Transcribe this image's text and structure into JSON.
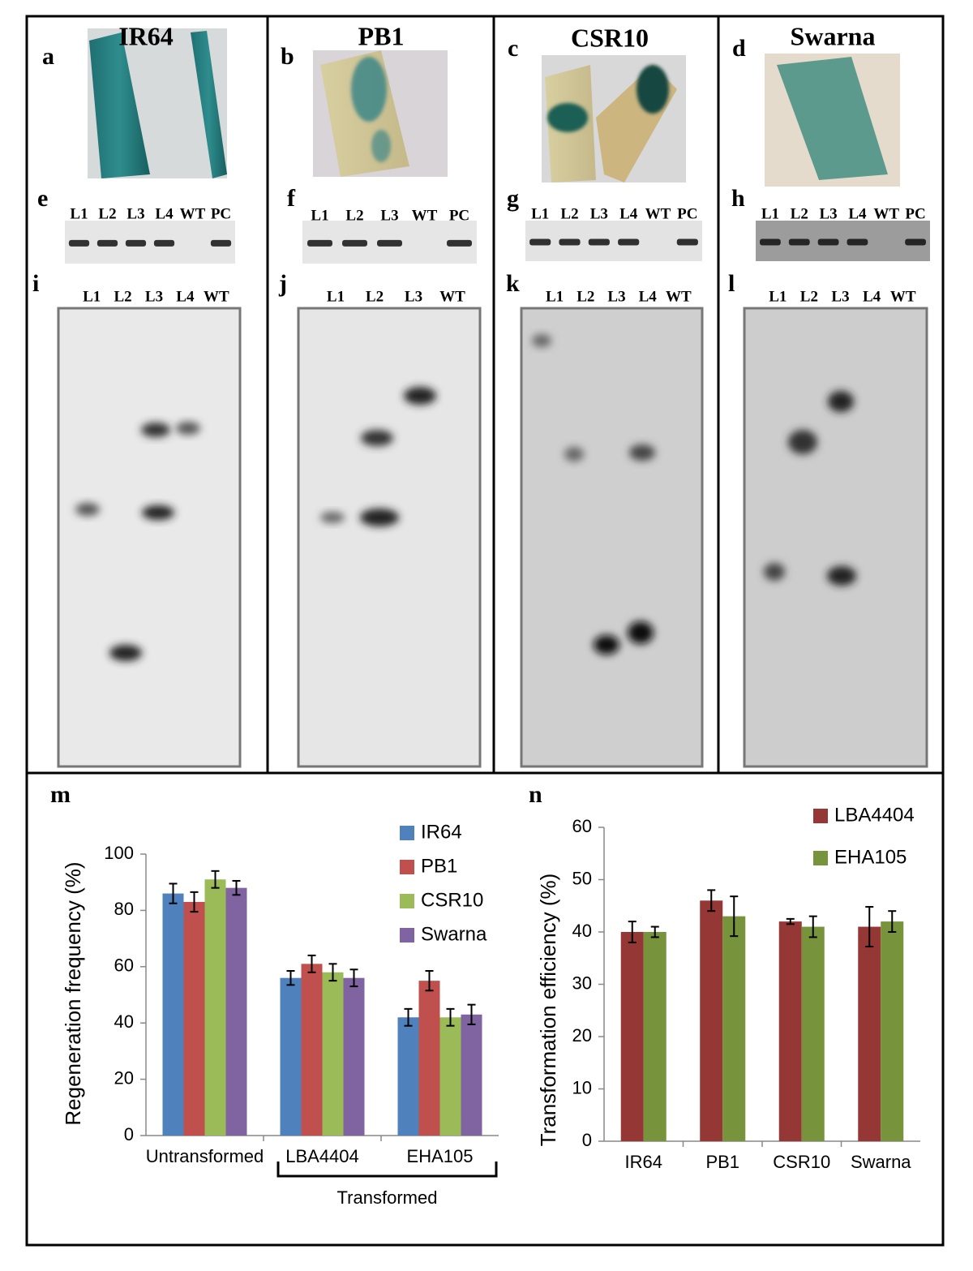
{
  "image_panels": [
    {
      "letter": "a",
      "title": "IR64"
    },
    {
      "letter": "b",
      "title": "PB1"
    },
    {
      "letter": "c",
      "title": "CSR10"
    },
    {
      "letter": "d",
      "title": "Swarna"
    }
  ],
  "pcr_panels": [
    {
      "letter": "e",
      "lanes": [
        "L1",
        "L2",
        "L3",
        "L4",
        "WT",
        "PC"
      ]
    },
    {
      "letter": "f",
      "lanes": [
        "L1",
        "L2",
        "L3",
        "WT",
        "PC"
      ]
    },
    {
      "letter": "g",
      "lanes": [
        "L1",
        "L2",
        "L3",
        "L4",
        "WT",
        "PC"
      ]
    },
    {
      "letter": "h",
      "lanes": [
        "L1",
        "L2",
        "L3",
        "L4",
        "WT",
        "PC"
      ]
    }
  ],
  "blot_panels": [
    {
      "letter": "i",
      "lanes": [
        "L1",
        "L2",
        "L3",
        "L4",
        "WT"
      ]
    },
    {
      "letter": "j",
      "lanes": [
        "L1",
        "L2",
        "L3",
        "WT"
      ]
    },
    {
      "letter": "k",
      "lanes": [
        "L1",
        "L2",
        "L3",
        "L4",
        "WT"
      ]
    },
    {
      "letter": "l",
      "lanes": [
        "L1",
        "L2",
        "L3",
        "L4",
        "WT"
      ]
    }
  ],
  "chart_data": [
    {
      "type": "bar",
      "panel_label": "m",
      "y_label": "Regeneration frequency (%)",
      "categories": [
        "Untransformed",
        "LBA4404",
        "EHA105"
      ],
      "annotation": "Transformed",
      "series": [
        {
          "name": "IR64",
          "color": "#4f81bd",
          "values": [
            86,
            56,
            42
          ],
          "errors": [
            3.5,
            2.5,
            3
          ]
        },
        {
          "name": "PB1",
          "color": "#c0504d",
          "values": [
            83,
            61,
            55
          ],
          "errors": [
            3.5,
            3,
            3.5
          ]
        },
        {
          "name": "CSR10",
          "color": "#9bbb59",
          "values": [
            91,
            58,
            42
          ],
          "errors": [
            3,
            3,
            3
          ]
        },
        {
          "name": "Swarna",
          "color": "#8064a2",
          "values": [
            88,
            56,
            43
          ],
          "errors": [
            2.5,
            3,
            3.5
          ]
        }
      ],
      "ylim": [
        0,
        100
      ],
      "yticks": [
        0,
        20,
        40,
        60,
        80,
        100
      ]
    },
    {
      "type": "bar",
      "panel_label": "n",
      "y_label": "Transformation efficiency (%)",
      "categories": [
        "IR64",
        "PB1",
        "CSR10",
        "Swarna"
      ],
      "series": [
        {
          "name": "LBA4404",
          "color": "#953735",
          "values": [
            40,
            46,
            42,
            41
          ],
          "errors": [
            2,
            2,
            0.5,
            3.8
          ]
        },
        {
          "name": "EHA105",
          "color": "#77933c",
          "values": [
            40,
            43,
            41,
            42
          ],
          "errors": [
            1,
            3.8,
            2,
            2
          ]
        }
      ],
      "ylim": [
        0,
        60
      ],
      "yticks": [
        0,
        10,
        20,
        30,
        40,
        50,
        60
      ]
    }
  ]
}
